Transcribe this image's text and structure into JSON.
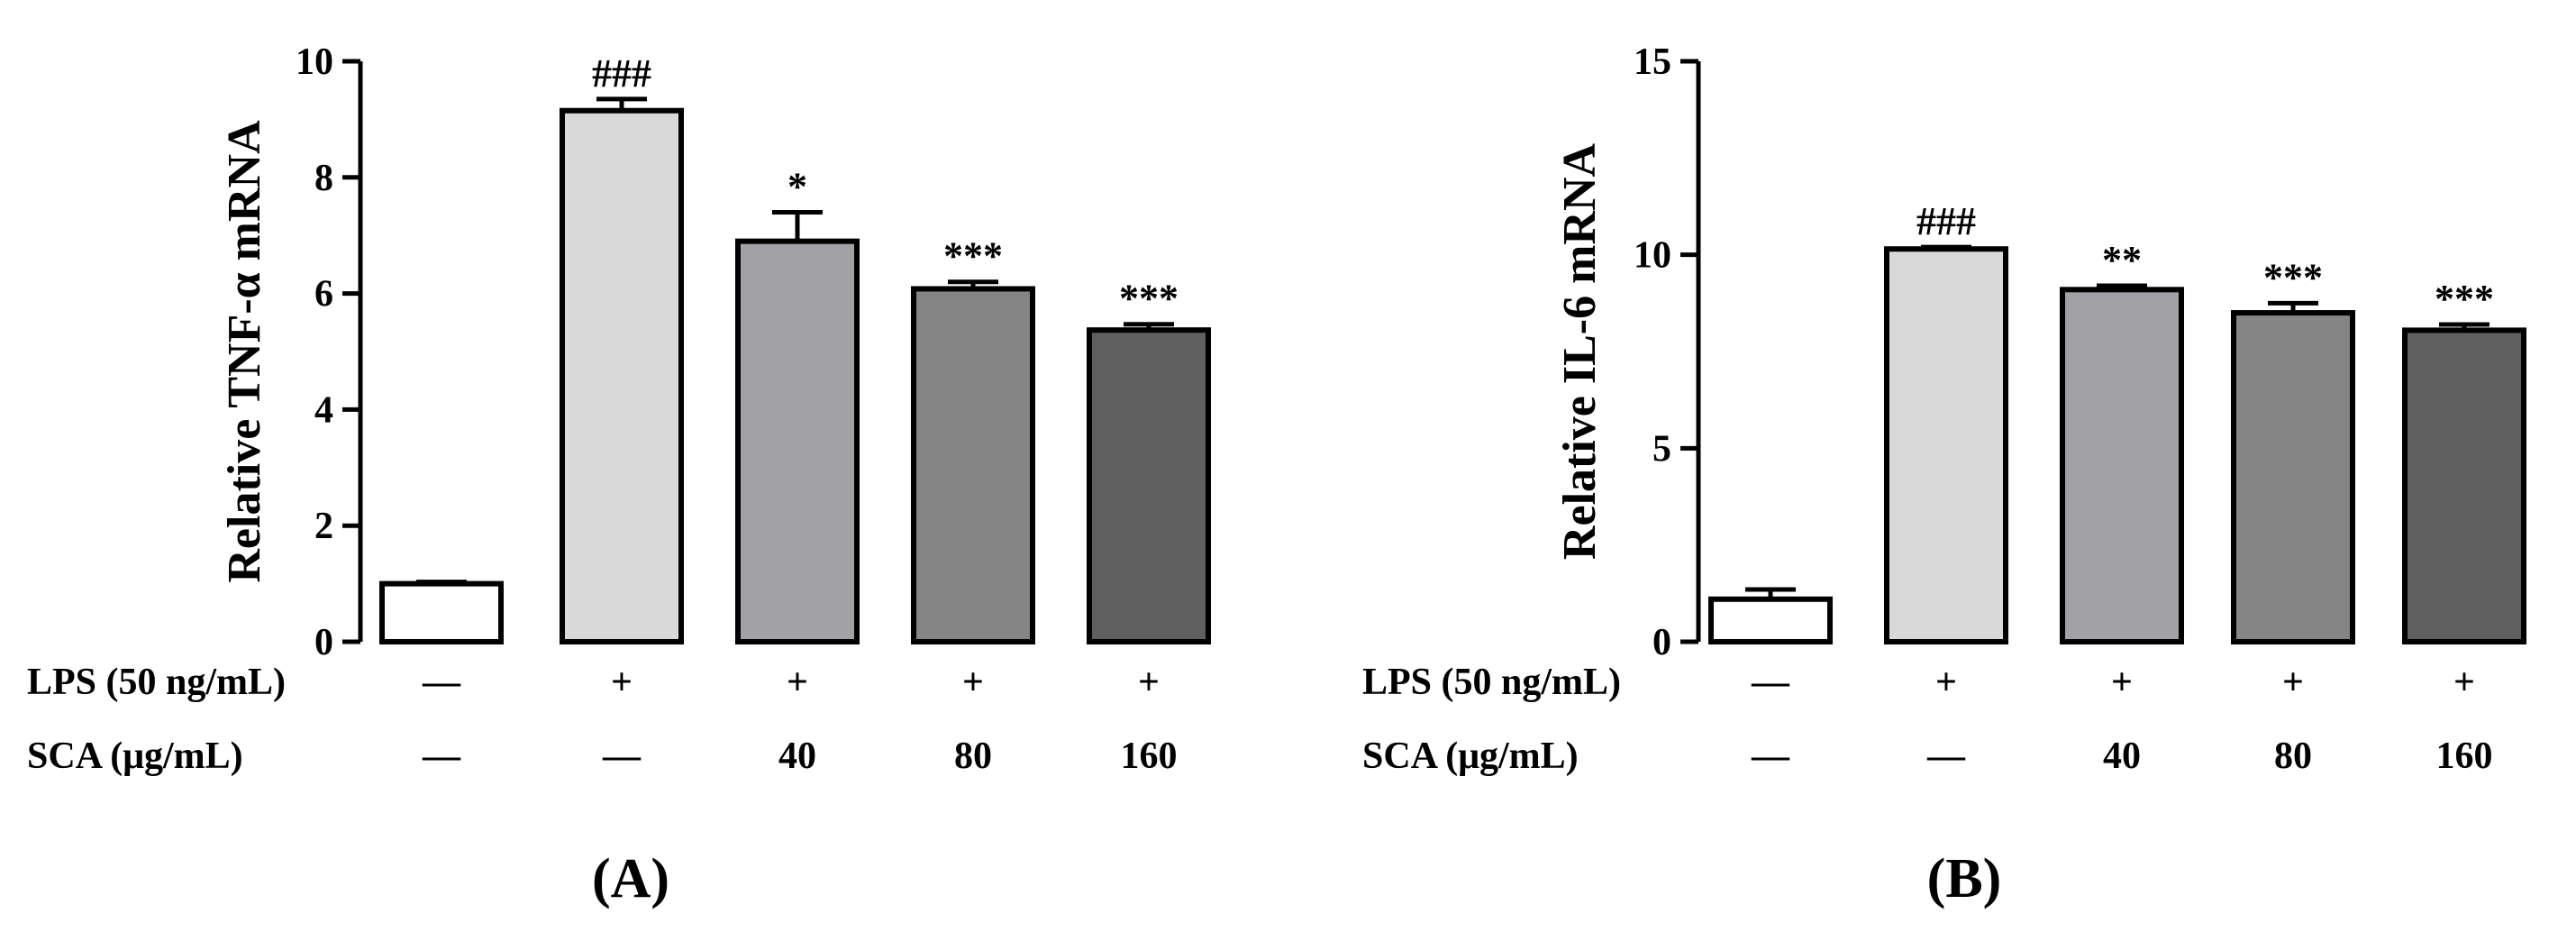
{
  "chart_data": [
    {
      "panel": "(A)",
      "type": "bar",
      "ylabel": "Relative TNF-α mRNA",
      "ylim": [
        0,
        10
      ],
      "yticks": [
        0,
        2,
        4,
        6,
        8,
        10
      ],
      "values": [
        1.0,
        9.15,
        6.9,
        6.08,
        5.37
      ],
      "errors": [
        0.03,
        0.2,
        0.5,
        0.12,
        0.1
      ],
      "annotations": [
        "",
        "###",
        "*",
        "***",
        "***"
      ],
      "bar_colors": [
        "#ffffff",
        "#d9d9d9",
        "#a2a2a6",
        "#858585",
        "#5f5f5f"
      ],
      "rows": [
        {
          "label": "LPS (50 ng/mL)",
          "values": [
            "—",
            "+",
            "+",
            "+",
            "+"
          ]
        },
        {
          "label": "SCA (μg/mL)",
          "values": [
            "—",
            "—",
            "40",
            "80",
            "160"
          ]
        }
      ]
    },
    {
      "panel": "(B)",
      "type": "bar",
      "ylabel": "Relative IL-6 mRNA",
      "ylim": [
        0,
        15
      ],
      "yticks": [
        0,
        5,
        10,
        15
      ],
      "values": [
        1.1,
        10.15,
        9.1,
        8.5,
        8.05
      ],
      "errors": [
        0.25,
        0.05,
        0.1,
        0.25,
        0.15
      ],
      "annotations": [
        "",
        "###",
        "**",
        "***",
        "***"
      ],
      "bar_colors": [
        "#ffffff",
        "#d9d9d9",
        "#a2a2a6",
        "#858585",
        "#5f5f5f"
      ],
      "rows": [
        {
          "label": "LPS (50 ng/mL)",
          "values": [
            "—",
            "+",
            "+",
            "+",
            "+"
          ]
        },
        {
          "label": "SCA (μg/mL)",
          "values": [
            "—",
            "—",
            "40",
            "80",
            "160"
          ]
        }
      ]
    }
  ]
}
